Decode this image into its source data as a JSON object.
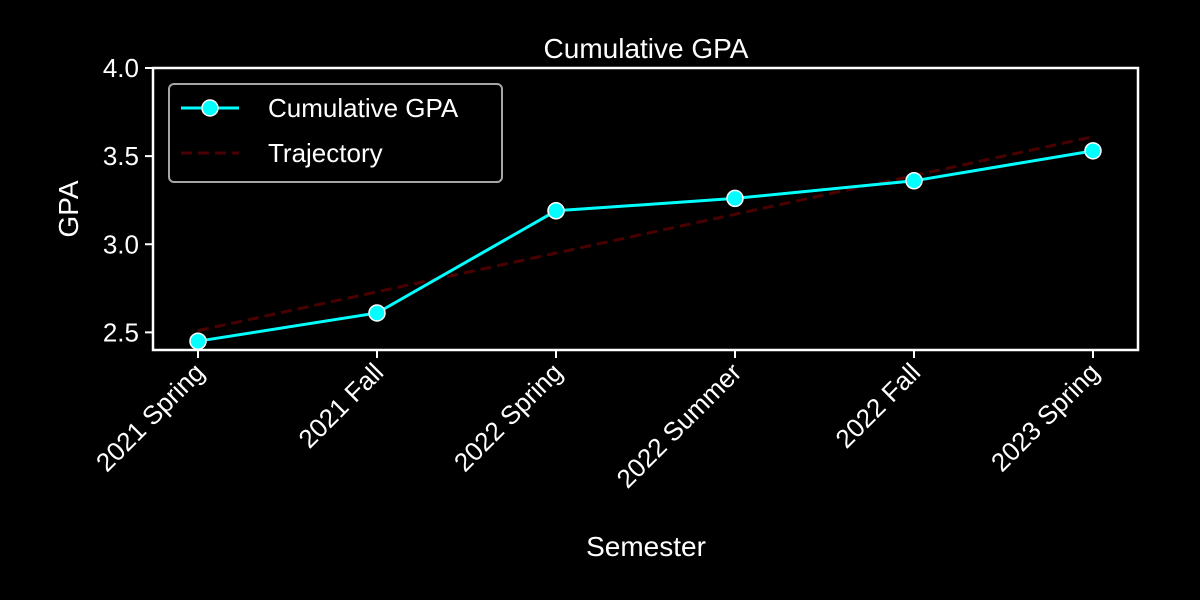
{
  "chart_data": {
    "type": "line",
    "title": "Cumulative GPA",
    "xlabel": "Semester",
    "ylabel": "GPA",
    "categories": [
      "2021 Spring",
      "2021 Fall",
      "2022 Spring",
      "2022 Summer",
      "2022 Fall",
      "2023 Spring"
    ],
    "ylim": [
      2.4,
      4.0
    ],
    "yticks": [
      2.5,
      3.0,
      3.5,
      4.0
    ],
    "ytick_labels": [
      "2.5",
      "3.0",
      "3.5",
      "4.0"
    ],
    "grid": false,
    "legend_position": "top-left",
    "series": [
      {
        "name": "Cumulative GPA",
        "values": [
          2.45,
          2.61,
          3.19,
          3.26,
          3.36,
          3.53
        ],
        "color": "#00ffff",
        "style": "solid-with-markers"
      },
      {
        "name": "Trajectory",
        "values": [
          2.51,
          2.73,
          2.95,
          3.17,
          3.39,
          3.61
        ],
        "color": "#4a0000",
        "style": "dashed"
      }
    ]
  }
}
